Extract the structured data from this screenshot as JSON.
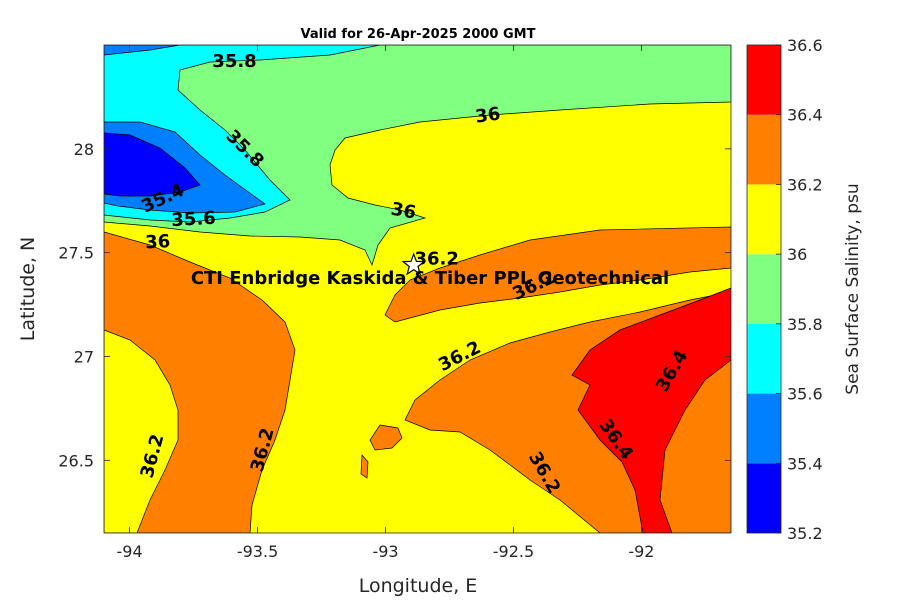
{
  "chart_data": {
    "type": "contour",
    "title": "Valid for 26-Apr-2025 2000 GMT",
    "xlabel": "Longitude, E",
    "ylabel": "Latitude, N",
    "xlim": [
      -94.1,
      -91.65
    ],
    "ylim": [
      26.15,
      28.5
    ],
    "xticks": [
      -94,
      -93.5,
      -93,
      -92.5,
      -92
    ],
    "xtick_labels": [
      "-94",
      "-93.5",
      "-93",
      "-92.5",
      "-92"
    ],
    "yticks": [
      26.5,
      27,
      27.5,
      28
    ],
    "ytick_labels": [
      "26.5",
      "27",
      "27.5",
      "28"
    ],
    "colorbar": {
      "label": "Sea Surface Salinity, psu",
      "levels": [
        35.2,
        35.4,
        35.6,
        35.8,
        36,
        36.2,
        36.4,
        36.6
      ],
      "level_labels": [
        "35.2",
        "35.4",
        "35.6",
        "35.8",
        "36",
        "36.2",
        "36.4",
        "36.6"
      ],
      "colors": [
        "#0000ff",
        "#0080ff",
        "#00ffff",
        "#80ff80",
        "#ffff00",
        "#ff8000",
        "#ff0000"
      ]
    },
    "contour_labels": [
      {
        "text": "35.8",
        "lon": -93.59,
        "lat": 28.42,
        "angle": 0
      },
      {
        "text": "35.8",
        "lon": -93.55,
        "lat": 28.0,
        "angle": 45
      },
      {
        "text": "36",
        "lon": -92.6,
        "lat": 28.16,
        "angle": -8
      },
      {
        "text": "36",
        "lon": -92.93,
        "lat": 27.7,
        "angle": 10
      },
      {
        "text": "35.4",
        "lon": -93.87,
        "lat": 27.76,
        "angle": -25
      },
      {
        "text": "35.6",
        "lon": -93.75,
        "lat": 27.66,
        "angle": -3
      },
      {
        "text": "36",
        "lon": -93.89,
        "lat": 27.55,
        "angle": -3
      },
      {
        "text": "36.2",
        "lon": -92.8,
        "lat": 27.47,
        "angle": 0
      },
      {
        "text": "36.2",
        "lon": -92.42,
        "lat": 27.34,
        "angle": -25
      },
      {
        "text": "36.2",
        "lon": -92.71,
        "lat": 27.0,
        "angle": -27
      },
      {
        "text": "36.4",
        "lon": -91.88,
        "lat": 26.93,
        "angle": -60
      },
      {
        "text": "36.4",
        "lon": -92.1,
        "lat": 26.6,
        "angle": 55
      },
      {
        "text": "36.2",
        "lon": -92.38,
        "lat": 26.44,
        "angle": 60
      },
      {
        "text": "36.2",
        "lon": -93.91,
        "lat": 26.52,
        "angle": -75
      },
      {
        "text": "36.2",
        "lon": -93.48,
        "lat": 26.55,
        "angle": -75
      }
    ],
    "site": {
      "name": "CTI Enbridge  Kaskida & Tiber PPL Geotechnical",
      "lon": -92.89,
      "lat": 27.44,
      "marker": "star"
    }
  }
}
